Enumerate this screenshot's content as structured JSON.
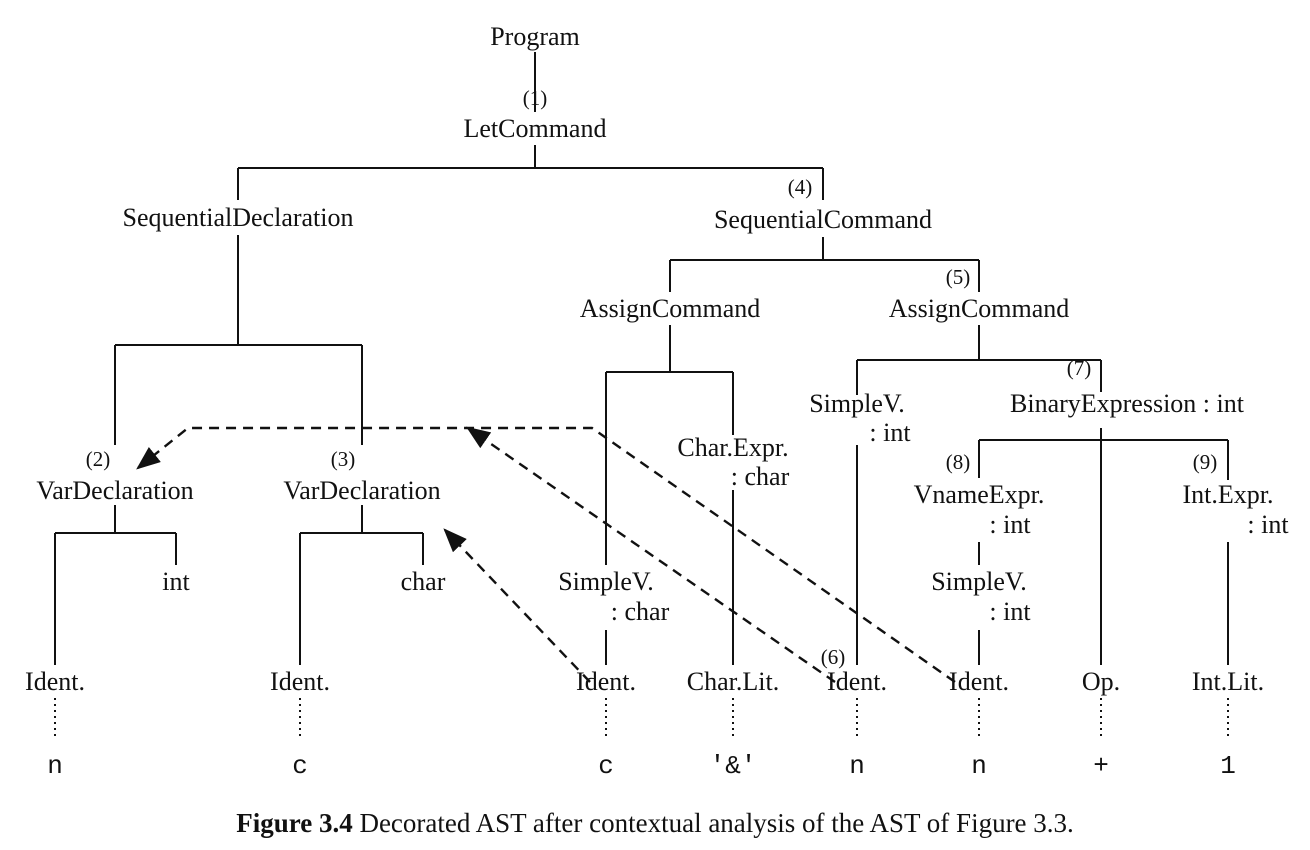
{
  "nodes": {
    "program": "Program",
    "let_command": "LetCommand",
    "seq_declaration": "SequentialDeclaration",
    "seq_command": "SequentialCommand",
    "assign_command_1": "AssignCommand",
    "assign_command_2": "AssignCommand",
    "var_declaration_1": "VarDeclaration",
    "var_declaration_2": "VarDeclaration",
    "type_int": "int",
    "type_char": "char",
    "simple_v_1": "SimpleV.",
    "simple_v_1_type": ": char",
    "char_expr": "Char.Expr.",
    "char_expr_type": ": char",
    "simple_v_2": "SimpleV.",
    "simple_v_2_type": ": int",
    "binary_expr": "BinaryExpression : int",
    "vname_expr": "VnameExpr.",
    "vname_expr_type": ": int",
    "int_expr": "Int.Expr.",
    "int_expr_type": ": int",
    "simple_v_3": "SimpleV.",
    "simple_v_3_type": ": int",
    "ident_1": "Ident.",
    "ident_2": "Ident.",
    "ident_3": "Ident.",
    "char_lit": "Char.Lit.",
    "ident_4": "Ident.",
    "ident_5": "Ident.",
    "op": "Op.",
    "int_lit": "Int.Lit."
  },
  "tags": {
    "t1": "(1)",
    "t2": "(2)",
    "t3": "(3)",
    "t4": "(4)",
    "t5": "(5)",
    "t6": "(6)",
    "t7": "(7)",
    "t8": "(8)",
    "t9": "(9)"
  },
  "spellings": [
    "n",
    "c",
    "c",
    "'&'",
    "n",
    "n",
    "+",
    "1"
  ],
  "caption": {
    "label": "Figure 3.4",
    "text": " Decorated AST after contextual analysis of the AST of Figure 3.3."
  }
}
